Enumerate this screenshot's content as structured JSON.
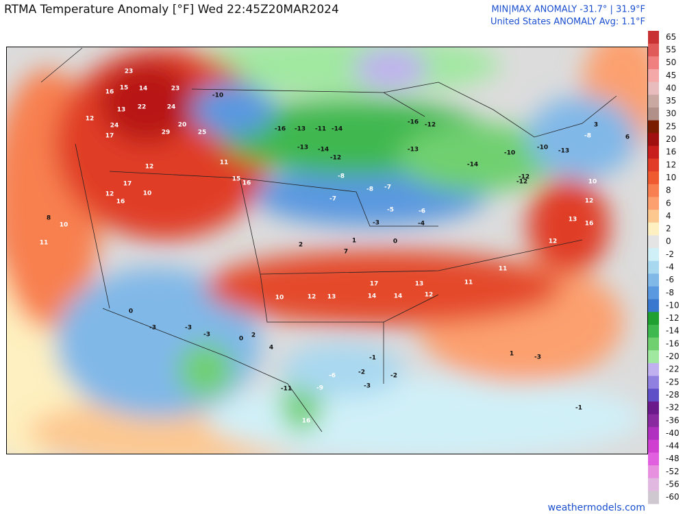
{
  "header": {
    "title": "RTMA Temperature Anomaly [°F]  Wed 22:45Z20MAR2024",
    "minmax": "MIN|MAX ANOMALY -31.7° | 31.9°F",
    "average": "United States ANOMALY Avg: 1.1°F"
  },
  "colorbar": {
    "ticks": [
      65,
      55,
      50,
      45,
      40,
      35,
      30,
      25,
      20,
      16,
      12,
      10,
      8,
      6,
      4,
      2,
      0,
      -2,
      -4,
      -6,
      -8,
      -10,
      -12,
      -14,
      -16,
      -20,
      -22,
      -25,
      -28,
      -32,
      -36,
      -40,
      -44,
      -48,
      -52,
      -56,
      -60
    ],
    "colors": [
      "#c83232",
      "#e05a5a",
      "#f08080",
      "#f4a8a8",
      "#e8bcbc",
      "#c8a8a0",
      "#b09088",
      "#7a1c00",
      "#a01010",
      "#c81e1e",
      "#e03c28",
      "#f05a30",
      "#f88050",
      "#fca070",
      "#fdc890",
      "#fef0c0",
      "#e4e4e4",
      "#d0f0f8",
      "#a8d8f0",
      "#80b8e8",
      "#5a98e0",
      "#3a78d0",
      "#20a030",
      "#40b850",
      "#70d070",
      "#a0e8a0",
      "#c0b0f0",
      "#9080e0",
      "#6050c8",
      "#6a1a8a",
      "#8a2aa0",
      "#b030c0",
      "#d040d0",
      "#e060e0",
      "#e890e0",
      "#e0b8e0",
      "#d0c8d0"
    ]
  },
  "map_labels": [
    23,
    15,
    14,
    23,
    16,
    13,
    22,
    24,
    12,
    24,
    17,
    29,
    20,
    25,
    12,
    17,
    10,
    12,
    16,
    16,
    15,
    11,
    -10,
    -16,
    -13,
    -11,
    -14,
    -13,
    -14,
    -12,
    -16,
    -12,
    -13,
    -14,
    -12,
    -8,
    -7,
    -8,
    -7,
    -5,
    -6,
    -3,
    -4,
    2,
    0,
    1,
    7,
    10,
    12,
    13,
    17,
    14,
    14,
    13,
    12,
    11,
    11,
    12,
    13,
    16,
    10,
    12,
    -2,
    -3,
    -6,
    -9,
    -11,
    16,
    -3,
    -3,
    0,
    -3,
    2,
    0,
    4,
    -1,
    -2,
    1,
    -3,
    -1,
    11,
    10,
    8,
    -10,
    -10,
    -12,
    -13,
    6,
    -8,
    3
  ],
  "footer": "weathermodels.com"
}
